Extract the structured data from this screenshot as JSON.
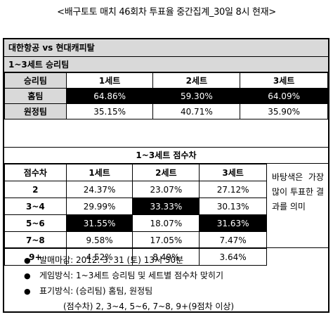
{
  "title": "<배구토토 매치 46회차 투표율 중간집계_30일 8시 현재>",
  "match": "대한항공 vs 현대캐피탈",
  "section1": {
    "label": "1~3세트 승리팀",
    "corner": "승리팀",
    "columns": [
      "1세트",
      "2세트",
      "3세트"
    ],
    "rows": [
      {
        "label": "홈팀",
        "values": [
          "64.86%",
          "59.30%",
          "64.09%"
        ]
      },
      {
        "label": "원정팀",
        "values": [
          "35.15%",
          "40.71%",
          "35.90%"
        ]
      }
    ]
  },
  "section2": {
    "label": "1~3세트 점수차",
    "corner": "점수차",
    "columns": [
      "1세트",
      "2세트",
      "3세트"
    ],
    "rows": [
      {
        "label": "2",
        "values": [
          "24.37%",
          "23.07%",
          "27.12%"
        ]
      },
      {
        "label": "3~4",
        "values": [
          "29.99%",
          "33.33%",
          "30.13%"
        ]
      },
      {
        "label": "5~6",
        "values": [
          "31.55%",
          "18.07%",
          "31.63%"
        ]
      },
      {
        "label": "7~8",
        "values": [
          "9.58%",
          "17.05%",
          "7.47%"
        ]
      },
      {
        "label": "9+",
        "values": [
          "4.52%",
          "8.49%",
          "3.64%"
        ]
      }
    ],
    "side_note": "바탕색은 가장 많이 투표한 결과를 의미"
  },
  "notes": [
    "발매마감: 2012. 3. 31 (토) 13시 50분",
    "게임방식: 1~3세트 승리팀 및 세트별 점수차 맞히기",
    "표기방식: (승리팀) 홈팀, 원정팀"
  ],
  "notes_sub": "(점수차) 2, 3~4, 5~6, 7~8, 9+(9점차 이상)",
  "bullet_glyph": "●",
  "colors": {
    "header_bg": "#d9d9d9",
    "highlight_bg": "#000000",
    "highlight_text": "#ffffff"
  }
}
